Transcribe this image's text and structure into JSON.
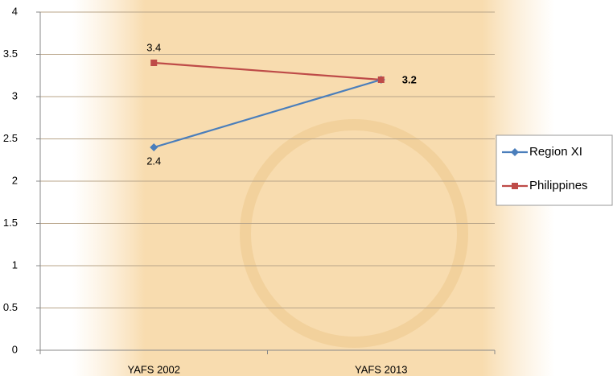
{
  "chart_data": {
    "type": "line",
    "categories": [
      "YAFS 2002",
      "YAFS 2013"
    ],
    "series": [
      {
        "name": "Region XI",
        "color": "#4a7ebb",
        "marker": "diamond",
        "values": [
          2.4,
          3.2
        ],
        "value_labels": [
          "2.4",
          null
        ]
      },
      {
        "name": "Philippines",
        "color": "#be4b48",
        "marker": "square",
        "values": [
          3.4,
          3.2
        ],
        "value_labels": [
          "3.4",
          "3.2"
        ]
      }
    ],
    "ylim": [
      0,
      4
    ],
    "yticks": [
      0,
      0.5,
      1,
      1.5,
      2,
      2.5,
      3,
      3.5,
      4
    ],
    "grid": true,
    "legend": "right"
  }
}
